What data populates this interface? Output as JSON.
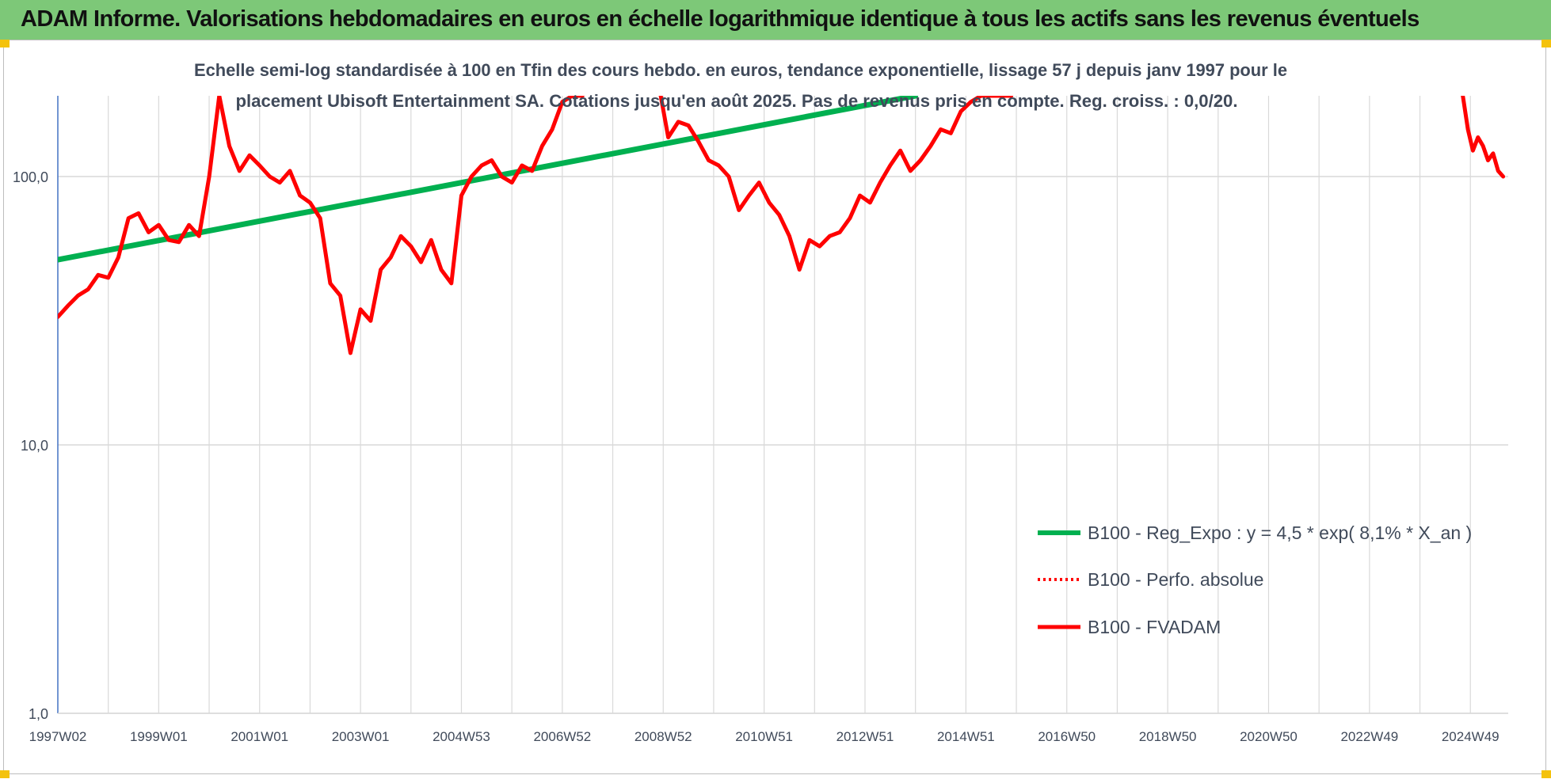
{
  "header": {
    "title": "ADAM Informe. Valorisations hebdomadaires en euros en échelle logarithmique identique à tous les actifs sans les revenus éventuels"
  },
  "colors": {
    "banner": "#7dc878",
    "grid": "#d9d9d9",
    "axis": "#4472c4",
    "green_series": "#00b050",
    "red_series": "#ff0000",
    "text": "#404a5a",
    "corner_marker": "#f4c20d"
  },
  "chart_data": {
    "type": "line",
    "title_line1": "Echelle semi-log standardisée à 100 en Tfin des cours hebdo. en euros, tendance exponentielle, lissage 57 j depuis janv 1997 pour le",
    "title_line2": "placement Ubisoft Entertainment SA. Cotations jusqu'en août 2025. Pas de revenus pris en compte. Reg. croiss. : 0,0/20.",
    "xlabel": "",
    "ylabel": "",
    "yscale": "log",
    "ylim": [
      1,
      200
    ],
    "xlim": [
      1997.0,
      2025.75
    ],
    "y_ticks": [
      {
        "value": 1,
        "label": "1,0"
      },
      {
        "value": 10,
        "label": "10,0"
      },
      {
        "value": 100,
        "label": "100,0"
      }
    ],
    "x_ticks": [
      {
        "value": 1997.0,
        "label": "1997W02"
      },
      {
        "value": 1999.0,
        "label": "1999W01"
      },
      {
        "value": 2001.0,
        "label": "2001W01"
      },
      {
        "value": 2003.0,
        "label": "2003W01"
      },
      {
        "value": 2005.0,
        "label": "2004W53"
      },
      {
        "value": 2007.0,
        "label": "2006W52"
      },
      {
        "value": 2009.0,
        "label": "2008W52"
      },
      {
        "value": 2011.0,
        "label": "2010W51"
      },
      {
        "value": 2013.0,
        "label": "2012W51"
      },
      {
        "value": 2015.0,
        "label": "2014W51"
      },
      {
        "value": 2017.0,
        "label": "2016W50"
      },
      {
        "value": 2019.0,
        "label": "2018W50"
      },
      {
        "value": 2021.0,
        "label": "2020W50"
      },
      {
        "value": 2023.0,
        "label": "2022W49"
      },
      {
        "value": 2025.0,
        "label": "2024W49"
      }
    ],
    "x_minor_grid": [
      1998.0,
      2000.0,
      2002.0,
      2004.0,
      2006.0,
      2008.0,
      2010.0,
      2012.0,
      2014.0,
      2016.0,
      2018.0,
      2020.0,
      2022.0,
      2024.0
    ],
    "legend": {
      "position": "bottom-right",
      "entries": [
        {
          "label": "B100 - Reg_Expo : y = 4,5 * exp( 8,1% *  X_an )",
          "style": "solid-thick",
          "color": "#00b050"
        },
        {
          "label": "B100 - Perfo. absolue",
          "style": "dotted",
          "color": "#ff0000"
        },
        {
          "label": "B100 - FVADAM",
          "style": "solid",
          "color": "#ff0000"
        }
      ]
    },
    "series": [
      {
        "name": "B100 - Reg_Expo : y = 4,5 * exp( 8,1% *  X_an )",
        "color": "#00b050",
        "x": [
          1997.0,
          2014.0
        ],
        "y": [
          49,
          200
        ]
      },
      {
        "name": "B100 - FVADAM",
        "color": "#ff0000",
        "segments": [
          {
            "x": [
              1997.0,
              1997.2,
              1997.4,
              1997.6,
              1997.8,
              1998.0,
              1998.2,
              1998.4,
              1998.6,
              1998.8,
              1999.0,
              1999.2,
              1999.4,
              1999.6,
              1999.8,
              2000.0,
              2000.2,
              2000.4,
              2000.6,
              2000.8,
              2001.0,
              2001.2,
              2001.4,
              2001.6,
              2001.8,
              2002.0,
              2002.2,
              2002.4,
              2002.6,
              2002.8,
              2003.0,
              2003.2,
              2003.4,
              2003.6,
              2003.8,
              2004.0,
              2004.2,
              2004.4,
              2004.6,
              2004.8,
              2005.0,
              2005.2,
              2005.4,
              2005.6,
              2005.8,
              2006.0,
              2006.2,
              2006.4,
              2006.6,
              2006.8,
              2007.0,
              2007.2,
              2007.4
            ],
            "y": [
              30,
              33,
              36,
              38,
              43,
              42,
              50,
              70,
              73,
              62,
              66,
              58,
              57,
              66,
              60,
              100,
              200,
              130,
              105,
              120,
              110,
              100,
              95,
              105,
              85,
              80,
              70,
              40,
              36,
              22,
              32,
              29,
              45,
              50,
              60,
              55,
              48,
              58,
              45,
              40,
              85,
              100,
              110,
              115,
              100,
              95,
              110,
              105,
              130,
              150,
              190,
              200,
              200
            ]
          },
          {
            "x": [
              2008.95,
              2009.1,
              2009.3,
              2009.5,
              2009.7,
              2009.9,
              2010.1,
              2010.3,
              2010.5,
              2010.7,
              2010.9,
              2011.1,
              2011.3,
              2011.5,
              2011.7,
              2011.9,
              2012.1,
              2012.3,
              2012.5,
              2012.7,
              2012.9,
              2013.1,
              2013.3,
              2013.5,
              2013.7,
              2013.9,
              2014.1,
              2014.3,
              2014.5,
              2014.7,
              2014.9,
              2015.1,
              2015.3,
              2015.5,
              2015.7,
              2015.9
            ],
            "y": [
              200,
              140,
              160,
              155,
              135,
              115,
              110,
              100,
              75,
              85,
              95,
              80,
              72,
              60,
              45,
              58,
              55,
              60,
              62,
              70,
              85,
              80,
              95,
              110,
              125,
              105,
              115,
              130,
              150,
              145,
              175,
              190,
              200,
              200,
              200,
              200
            ]
          },
          {
            "x": [
              2024.85,
              2024.95,
              2025.05,
              2025.15,
              2025.25,
              2025.35,
              2025.45,
              2025.55,
              2025.65
            ],
            "y": [
              200,
              150,
              125,
              140,
              130,
              115,
              122,
              105,
              100
            ]
          }
        ]
      }
    ]
  }
}
